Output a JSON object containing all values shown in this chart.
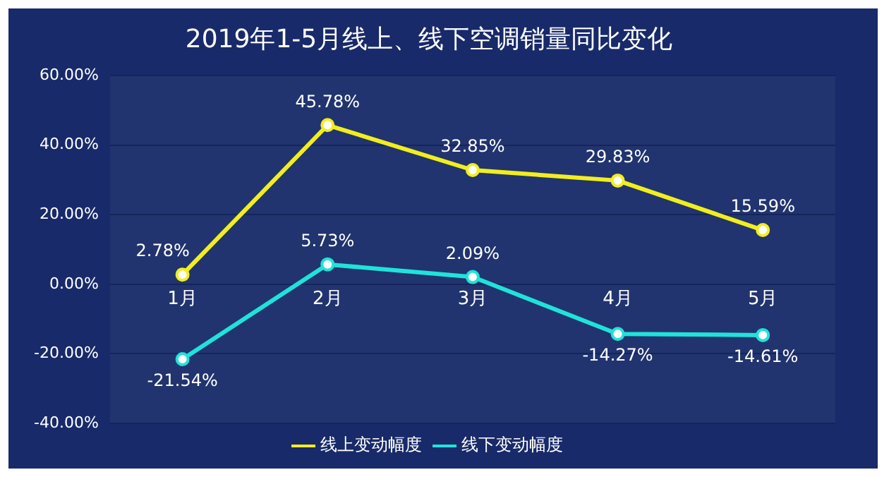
{
  "chart_data": {
    "type": "line",
    "title": "2019年1-5月线上、线下空调销量同比变化",
    "categories": [
      "1月",
      "2月",
      "3月",
      "4月",
      "5月"
    ],
    "series": [
      {
        "name": "线上变动幅度",
        "color": "#f2ee1c",
        "values": [
          2.78,
          45.78,
          32.85,
          29.83,
          15.59
        ],
        "value_labels": [
          "2.78%",
          "45.78%",
          "32.85%",
          "29.83%",
          "15.59%"
        ]
      },
      {
        "name": "线下变动幅度",
        "color": "#1fe3da",
        "values": [
          -21.54,
          5.73,
          2.09,
          -14.27,
          -14.61
        ],
        "value_labels": [
          "-21.54%",
          "5.73%",
          "2.09%",
          "-14.27%",
          "-14.61%"
        ]
      }
    ],
    "ylim": [
      -40,
      60
    ],
    "yticks": [
      {
        "value": -40,
        "label": "-40.00%"
      },
      {
        "value": -20,
        "label": "-20.00%"
      },
      {
        "value": 0,
        "label": "0.00%"
      },
      {
        "value": 20,
        "label": "20.00%"
      },
      {
        "value": 40,
        "label": "40.00%"
      },
      {
        "value": 60,
        "label": "60.00%"
      }
    ],
    "grid": "y",
    "legend": "bottom",
    "marker": "circle",
    "line_style": "solid"
  }
}
